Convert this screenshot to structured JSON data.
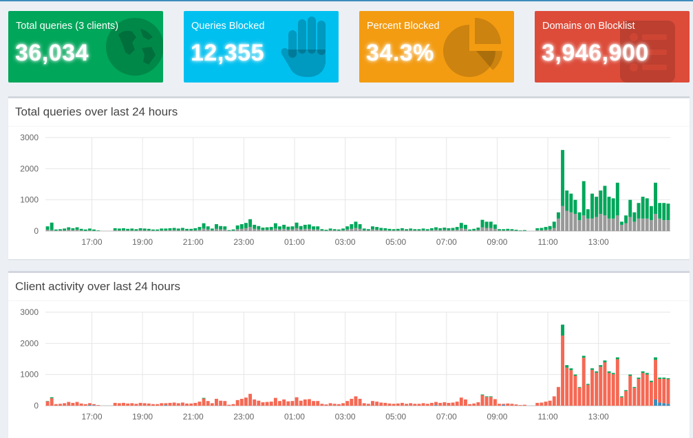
{
  "tiles": [
    {
      "label": "Total queries (3 clients)",
      "value": "36,034",
      "color": "#00a65a",
      "icon": "globe-icon"
    },
    {
      "label": "Queries Blocked",
      "value": "12,355",
      "color": "#00c0ef",
      "icon": "hand-icon"
    },
    {
      "label": "Percent Blocked",
      "value": "34.3%",
      "color": "#f39c12",
      "icon": "pie-chart-icon"
    },
    {
      "label": "Domains on Blocklist",
      "value": "3,946,900",
      "color": "#dd4b39",
      "icon": "list-icon"
    }
  ],
  "panels": {
    "queries_title": "Total queries over last 24 hours",
    "clients_title": "Client activity over last 24 hours"
  },
  "chart_data": [
    {
      "type": "bar",
      "title": "Total queries over last 24 hours",
      "stacked": true,
      "ylim": [
        0,
        3000
      ],
      "y_ticks": [
        "0",
        "1000",
        "2000",
        "3000"
      ],
      "x_ticks": [
        "17:00",
        "19:00",
        "21:00",
        "23:00",
        "01:00",
        "03:00",
        "05:00",
        "07:00",
        "09:00",
        "11:00",
        "13:00"
      ],
      "grid": true,
      "colors": {
        "blocked": "#999999",
        "permitted": "#00a65a"
      },
      "totals": [
        150,
        270,
        50,
        60,
        80,
        120,
        90,
        120,
        70,
        50,
        80,
        50,
        20,
        0,
        0,
        0,
        90,
        80,
        90,
        70,
        80,
        60,
        90,
        80,
        70,
        50,
        50,
        80,
        80,
        90,
        100,
        80,
        100,
        70,
        70,
        90,
        130,
        250,
        150,
        80,
        220,
        160,
        150,
        30,
        50,
        180,
        220,
        260,
        380,
        200,
        160,
        110,
        120,
        130,
        250,
        150,
        200,
        140,
        150,
        270,
        160,
        200,
        210,
        150,
        150,
        60,
        40,
        80,
        60,
        50,
        80,
        150,
        220,
        300,
        220,
        80,
        60,
        150,
        130,
        100,
        90,
        70,
        60,
        70,
        90,
        60,
        80,
        60,
        60,
        80,
        60,
        90,
        120,
        90,
        110,
        90,
        100,
        130,
        260,
        200,
        50,
        70,
        110,
        360,
        300,
        300,
        210,
        60,
        60,
        70,
        60,
        40,
        20,
        30,
        0,
        0,
        90,
        100,
        130,
        160,
        300,
        600,
        2600,
        1300,
        1200,
        1000,
        600,
        1600,
        700,
        1200,
        1100,
        1300,
        1450,
        1100,
        1050,
        1550,
        300,
        500,
        1000,
        600,
        900,
        1100,
        1050,
        800,
        1550,
        900,
        900,
        880
      ],
      "blocked": [
        40,
        30,
        15,
        20,
        20,
        40,
        30,
        40,
        20,
        10,
        20,
        10,
        5,
        0,
        0,
        0,
        25,
        20,
        25,
        20,
        20,
        15,
        25,
        20,
        20,
        15,
        15,
        20,
        20,
        25,
        30,
        20,
        30,
        20,
        20,
        25,
        40,
        80,
        50,
        25,
        70,
        50,
        50,
        10,
        15,
        60,
        70,
        90,
        130,
        70,
        50,
        35,
        40,
        40,
        80,
        50,
        70,
        45,
        50,
        90,
        50,
        70,
        70,
        50,
        50,
        20,
        10,
        25,
        20,
        15,
        25,
        50,
        70,
        100,
        70,
        25,
        20,
        50,
        40,
        30,
        30,
        20,
        20,
        20,
        30,
        20,
        25,
        20,
        20,
        25,
        20,
        30,
        40,
        30,
        35,
        30,
        30,
        40,
        90,
        70,
        15,
        20,
        35,
        120,
        100,
        100,
        70,
        20,
        20,
        20,
        20,
        10,
        5,
        10,
        0,
        0,
        30,
        30,
        40,
        50,
        100,
        400,
        800,
        650,
        600,
        550,
        350,
        500,
        400,
        400,
        450,
        550,
        500,
        400,
        400,
        500,
        200,
        250,
        450,
        300,
        400,
        400,
        400,
        350,
        550,
        400,
        350,
        350
      ]
    },
    {
      "type": "bar",
      "title": "Client activity over last 24 hours",
      "stacked": true,
      "ylim": [
        0,
        3000
      ],
      "y_ticks": [
        "0",
        "1000",
        "2000",
        "3000"
      ],
      "x_ticks": [
        "17:00",
        "19:00",
        "21:00",
        "23:00",
        "01:00",
        "03:00",
        "05:00",
        "07:00",
        "09:00",
        "11:00",
        "13:00"
      ],
      "grid": true,
      "colors": {
        "client_1": "#3c8dbc",
        "client_2": "#f56954",
        "client_3": "#00a65a"
      },
      "client_1": [
        0,
        0,
        0,
        0,
        0,
        0,
        0,
        0,
        0,
        0,
        20,
        15,
        0,
        0,
        0,
        0,
        0,
        0,
        0,
        0,
        0,
        0,
        0,
        0,
        0,
        0,
        0,
        0,
        20,
        0,
        0,
        0,
        0,
        0,
        0,
        0,
        0,
        0,
        0,
        0,
        0,
        0,
        0,
        0,
        0,
        0,
        0,
        0,
        0,
        0,
        0,
        0,
        0,
        0,
        0,
        0,
        0,
        0,
        0,
        0,
        0,
        0,
        0,
        0,
        0,
        0,
        0,
        0,
        0,
        0,
        0,
        0,
        0,
        0,
        0,
        0,
        0,
        0,
        0,
        0,
        0,
        0,
        0,
        0,
        0,
        0,
        0,
        0,
        0,
        0,
        0,
        0,
        20,
        0,
        0,
        0,
        0,
        0,
        0,
        0,
        0,
        0,
        0,
        0,
        0,
        0,
        0,
        0,
        30,
        0,
        0,
        0,
        0,
        0,
        0,
        0,
        0,
        0,
        0,
        0,
        0,
        0,
        0,
        0,
        0,
        0,
        0,
        0,
        0,
        0,
        0,
        0,
        0,
        0,
        0,
        0,
        0,
        0,
        0,
        0,
        0,
        0,
        0,
        0,
        200,
        100,
        80,
        60
      ],
      "client_3": [
        10,
        30,
        0,
        0,
        0,
        0,
        0,
        0,
        0,
        0,
        0,
        0,
        0,
        0,
        0,
        0,
        0,
        0,
        0,
        0,
        0,
        0,
        0,
        0,
        0,
        0,
        0,
        0,
        0,
        0,
        0,
        0,
        0,
        0,
        0,
        0,
        0,
        20,
        0,
        0,
        0,
        0,
        0,
        0,
        0,
        0,
        0,
        0,
        0,
        0,
        0,
        0,
        0,
        0,
        0,
        0,
        0,
        0,
        0,
        0,
        0,
        0,
        0,
        0,
        0,
        0,
        0,
        0,
        0,
        0,
        0,
        0,
        0,
        0,
        0,
        0,
        0,
        0,
        0,
        0,
        0,
        0,
        0,
        0,
        0,
        0,
        0,
        0,
        0,
        0,
        0,
        0,
        0,
        0,
        0,
        0,
        0,
        0,
        0,
        0,
        0,
        0,
        0,
        20,
        20,
        20,
        0,
        0,
        0,
        0,
        0,
        0,
        0,
        0,
        0,
        0,
        0,
        0,
        0,
        0,
        0,
        0,
        350,
        80,
        60,
        40,
        20,
        60,
        30,
        50,
        40,
        50,
        60,
        50,
        40,
        60,
        30,
        30,
        40,
        30,
        40,
        50,
        50,
        40,
        80,
        40,
        40,
        30
      ],
      "totals": [
        150,
        270,
        50,
        60,
        80,
        120,
        90,
        120,
        70,
        50,
        80,
        50,
        20,
        0,
        0,
        0,
        90,
        80,
        90,
        70,
        80,
        60,
        90,
        80,
        70,
        50,
        50,
        80,
        80,
        90,
        100,
        80,
        100,
        70,
        70,
        90,
        130,
        250,
        150,
        80,
        220,
        160,
        150,
        30,
        50,
        180,
        220,
        260,
        380,
        200,
        160,
        110,
        120,
        130,
        250,
        150,
        200,
        140,
        150,
        270,
        160,
        200,
        210,
        150,
        150,
        60,
        40,
        80,
        60,
        50,
        80,
        150,
        220,
        300,
        220,
        80,
        60,
        150,
        130,
        100,
        90,
        70,
        60,
        70,
        90,
        60,
        80,
        60,
        60,
        80,
        60,
        90,
        120,
        90,
        110,
        90,
        100,
        130,
        260,
        200,
        50,
        70,
        110,
        360,
        300,
        300,
        210,
        60,
        60,
        70,
        60,
        40,
        20,
        30,
        0,
        0,
        90,
        100,
        130,
        160,
        300,
        600,
        2600,
        1300,
        1200,
        1000,
        600,
        1600,
        700,
        1200,
        1100,
        1300,
        1450,
        1100,
        1050,
        1550,
        300,
        500,
        1000,
        600,
        900,
        1100,
        1050,
        800,
        1550,
        900,
        900,
        880
      ]
    }
  ]
}
